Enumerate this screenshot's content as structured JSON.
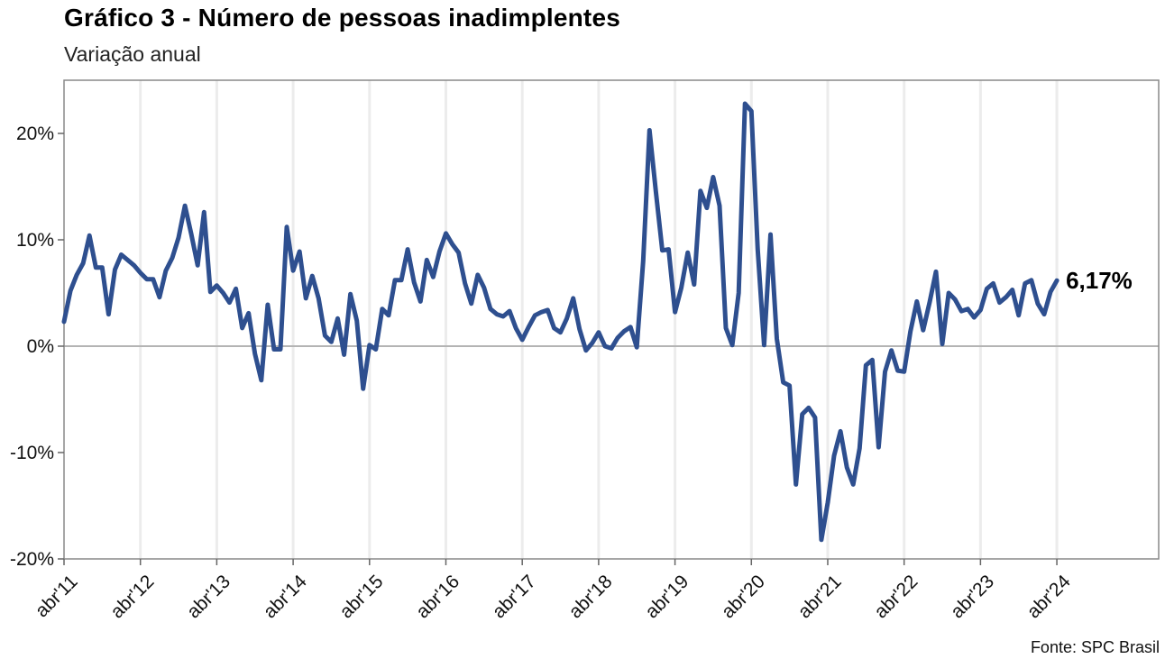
{
  "header": {
    "title": "Gráfico 3 - Número de pessoas inadimplentes",
    "subtitle": "Variação anual"
  },
  "footer": {
    "source": "Fonte: SPC Brasil"
  },
  "colors": {
    "line": "#2e4f8f",
    "zero_line": "#b4b4b4",
    "grid": "#ececec",
    "frame": "#888888"
  },
  "chart_data": {
    "type": "line",
    "title": "Gráfico 3 - Número de pessoas inadimplentes",
    "subtitle": "Variação anual",
    "xlabel": "",
    "ylabel": "",
    "ylim": [
      -20,
      25
    ],
    "y_ticks": [
      -20,
      -10,
      0,
      10,
      20
    ],
    "y_tick_labels": [
      "-20%",
      "-10%",
      "0%",
      "10%",
      "20%"
    ],
    "x_tick_labels": [
      "abr'11",
      "abr'12",
      "abr'13",
      "abr'14",
      "abr'15",
      "abr'16",
      "abr'17",
      "abr'18",
      "abr'19",
      "abr'20",
      "abr'21",
      "abr'22",
      "abr'23",
      "abr'24"
    ],
    "x_start": "2011-04",
    "x_end": "2024-04",
    "x_axis_end": "2025-08",
    "grid": "vertical at x ticks",
    "end_label": "6,17%",
    "series": [
      {
        "values": [
          2.3,
          5.2,
          6.7,
          7.8,
          10.4,
          7.4,
          7.4,
          3.0,
          7.2,
          8.6,
          8.1,
          7.6,
          6.9,
          6.3,
          6.3,
          4.6,
          7.1,
          8.3,
          10.2,
          13.2,
          10.5,
          7.6,
          12.6,
          5.1,
          5.7,
          5.0,
          4.1,
          5.4,
          1.7,
          3.1,
          -0.7,
          -3.2,
          3.9,
          -0.3,
          -0.3,
          11.2,
          7.1,
          8.9,
          4.5,
          6.6,
          4.5,
          1.0,
          0.4,
          2.6,
          -0.8,
          4.9,
          2.4,
          -4.0,
          0.1,
          -0.3,
          3.5,
          2.9,
          6.2,
          6.2,
          9.1,
          6.0,
          4.2,
          8.1,
          6.5,
          8.9,
          10.6,
          9.6,
          8.8,
          5.9,
          4.0,
          6.7,
          5.5,
          3.5,
          3.0,
          2.8,
          3.3,
          1.7,
          0.6,
          1.8,
          2.9,
          3.2,
          3.4,
          1.7,
          1.3,
          2.6,
          4.5,
          1.6,
          -0.4,
          0.3,
          1.3,
          0.0,
          -0.2,
          0.8,
          1.4,
          1.8,
          -0.1,
          8.0,
          20.3,
          14.5,
          9.0,
          9.1,
          3.2,
          5.5,
          8.8,
          5.8,
          14.6,
          13.0,
          15.9,
          13.2,
          1.7,
          0.1,
          5.0,
          22.8,
          22.1,
          9.1,
          0.1,
          10.5,
          0.7,
          -3.4,
          -3.7,
          -13.0,
          -6.4,
          -5.8,
          -6.7,
          -18.2,
          -14.7,
          -10.3,
          -8.0,
          -11.4,
          -13.0,
          -9.6,
          -1.8,
          -1.3,
          -9.5,
          -2.4,
          -0.4,
          -2.3,
          -2.4,
          1.4,
          4.2,
          1.5,
          4.1,
          7.0,
          0.2,
          5.0,
          4.4,
          3.3,
          3.5,
          2.7,
          3.4,
          5.4,
          5.9,
          4.1,
          4.6,
          5.3,
          2.9,
          5.9,
          6.2,
          4.0,
          3.0,
          5.1,
          6.17
        ]
      }
    ]
  }
}
